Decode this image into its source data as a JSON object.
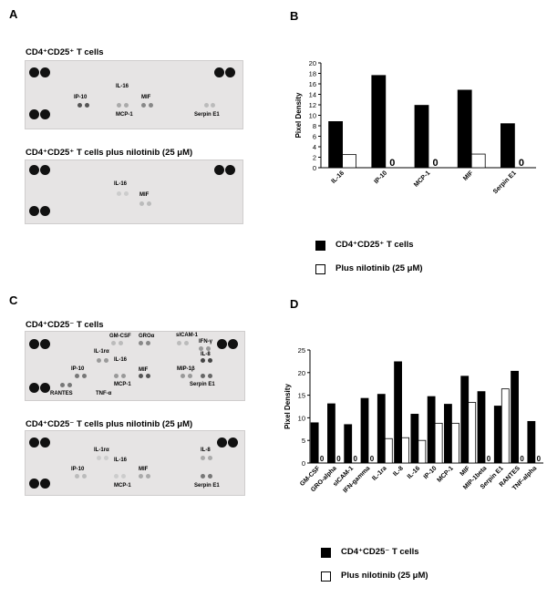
{
  "panels": {
    "A": {
      "letter": "A",
      "blots": [
        {
          "title": "CD4⁺CD25⁺ T cells",
          "labels": [
            "IL-16",
            "IP-10",
            "MIF",
            "MCP-1",
            "Serpin E1"
          ]
        },
        {
          "title": "CD4⁺CD25⁺ T cells plus nilotinib (25 μM)",
          "labels": [
            "IL-16",
            "MIF"
          ]
        }
      ]
    },
    "B": {
      "letter": "B"
    },
    "C": {
      "letter": "C",
      "blots": [
        {
          "title": "CD4⁺CD25⁻ T cells",
          "labels": [
            "GM-CSF",
            "GROα",
            "sICAM-1",
            "IFN-γ",
            "IL-1rα",
            "IL-16",
            "IL-8",
            "IP-10",
            "MIF",
            "MIP-1β",
            "MCP-1",
            "Serpin E1",
            "RANTES",
            "TNF-α"
          ]
        },
        {
          "title": "CD4⁺CD25⁻ T cells plus nilotinib (25 μM)",
          "labels": [
            "IL-1rα",
            "IL-16",
            "IL-8",
            "IP-10",
            "MIF",
            "MCP-1",
            "Serpin E1"
          ]
        }
      ]
    },
    "D": {
      "letter": "D"
    }
  },
  "colors": {
    "control": "#000000",
    "nilotinib": "#ffffff",
    "blot_bg": "#e6e4e4"
  },
  "chart_data": [
    {
      "type": "bar",
      "ylabel": "Pixel Density",
      "ylim": [
        0,
        20
      ],
      "yticks": [
        0,
        2,
        4,
        6,
        8,
        10,
        12,
        14,
        16,
        18,
        20
      ],
      "categories": [
        "IL-16",
        "IP-10",
        "MCP-1",
        "MIF",
        "Serpin E1"
      ],
      "series": [
        {
          "name": "CD4⁺CD25⁺ T cells",
          "values": [
            8.8,
            17.6,
            11.9,
            14.8,
            8.4
          ]
        },
        {
          "name": "Plus nilotinib (25 μM)",
          "values": [
            2.5,
            0,
            0,
            2.6,
            0
          ]
        }
      ],
      "zero_label": "0",
      "grid": false,
      "legend_position": "bottom"
    },
    {
      "type": "bar",
      "ylabel": "Pixel Density",
      "ylim": [
        0,
        25
      ],
      "yticks": [
        0,
        5,
        10,
        15,
        20,
        25
      ],
      "categories": [
        "GM-CSF",
        "GRO-alpha",
        "sICAM-1",
        "IFN-gamma",
        "IL-1ra",
        "IL-8",
        "IL-16",
        "IP-10",
        "MCP-1",
        "MIF",
        "MIP-1beta",
        "Serpin E1",
        "RANTES",
        "TNF-alpha"
      ],
      "series": [
        {
          "name": "CD4⁺CD25⁻ T cells",
          "values": [
            8.9,
            13.1,
            8.5,
            14.3,
            15.2,
            22.4,
            10.8,
            14.7,
            13.0,
            19.2,
            15.8,
            12.6,
            20.3,
            9.2
          ]
        },
        {
          "name": "Plus nilotinib (25 μM)",
          "values": [
            0,
            0,
            0,
            0,
            5.4,
            5.6,
            5.0,
            8.8,
            8.8,
            13.4,
            0,
            16.4,
            0,
            0
          ]
        }
      ],
      "zero_label": "0",
      "grid": false,
      "legend_position": "bottom"
    }
  ]
}
